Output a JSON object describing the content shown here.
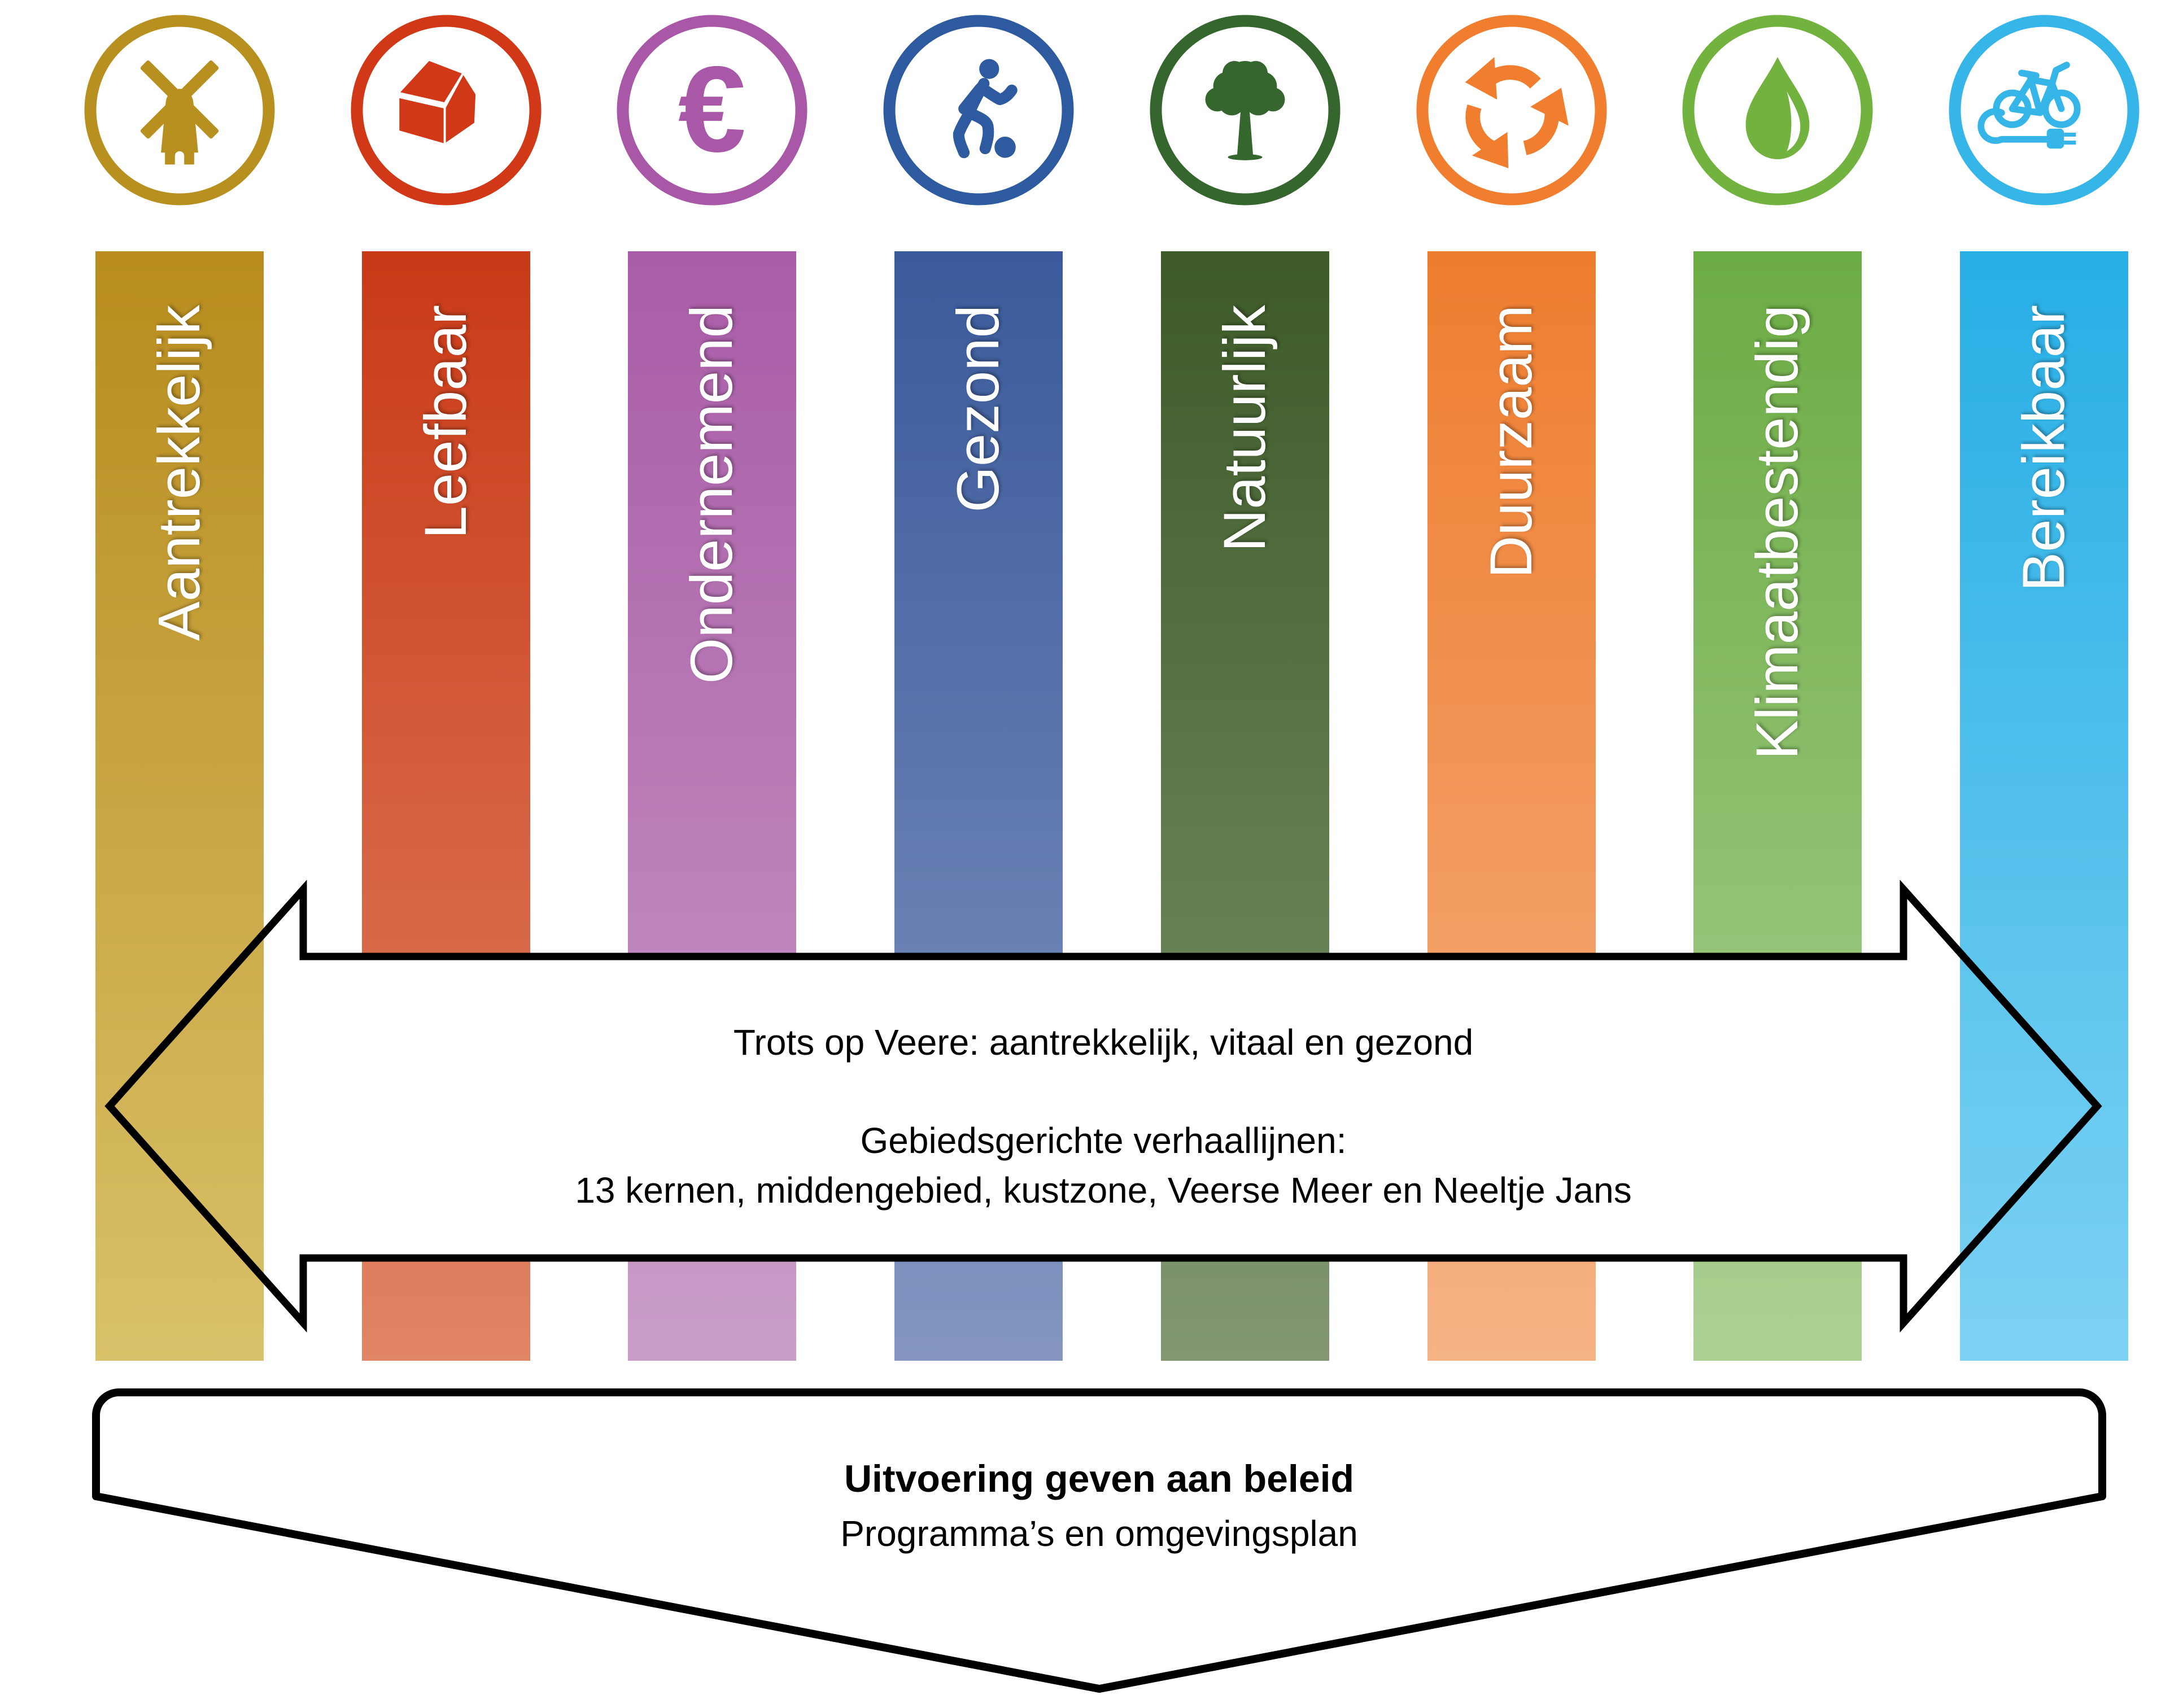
{
  "pillars": [
    {
      "label": "Aantrekkelijk",
      "icon": "windmill-icon",
      "ring_color": "#B8901F",
      "bar_top": "#B88C1E",
      "bar_bottom": "#D9C169"
    },
    {
      "label": "Leefbaar",
      "icon": "house-icon",
      "ring_color": "#D03818",
      "bar_top": "#C93A17",
      "bar_bottom": "#E08565"
    },
    {
      "label": "Ondernemend",
      "icon": "euro-icon",
      "ring_color": "#A958A7",
      "bar_top": "#A95CA7",
      "bar_bottom": "#CA9DC8"
    },
    {
      "label": "Gezond",
      "icon": "soccer-player-icon",
      "ring_color": "#2E5BA0",
      "bar_top": "#3A5A9B",
      "bar_bottom": "#8496C1"
    },
    {
      "label": "Natuurlijk",
      "icon": "tree-icon",
      "ring_color": "#35662E",
      "bar_top": "#3D5A28",
      "bar_bottom": "#829770"
    },
    {
      "label": "Duurzaam",
      "icon": "recycle-icon",
      "ring_color": "#F07E2E",
      "bar_top": "#EE7D2E",
      "bar_bottom": "#F5B285"
    },
    {
      "label": "Klimaatbestendig",
      "icon": "water-drop-icon",
      "ring_color": "#72B33F",
      "bar_top": "#6CAC44",
      "bar_bottom": "#ACD094"
    },
    {
      "label": "Bereikbaar",
      "icon": "ebike-icon",
      "ring_color": "#35B5E8",
      "bar_top": "#27AEE5",
      "bar_bottom": "#7DD2F3"
    }
  ],
  "arrow_banner": {
    "line1": "Trots op Veere: aantrekkelijk, vitaal en gezond",
    "line2": "Gebiedsgerichte verhaallijnen:",
    "line3": "13 kernen, middengebied, kustzone, Veerse Meer en Neeltje Jans",
    "outline_color": "#000000"
  },
  "bottom_banner": {
    "title": "Uitvoering geven aan beleid",
    "subtitle": "Programma’s en omgevingsplan",
    "outline_color": "#000000"
  },
  "euro_symbol": "€",
  "background_color": "#FFFFFF"
}
